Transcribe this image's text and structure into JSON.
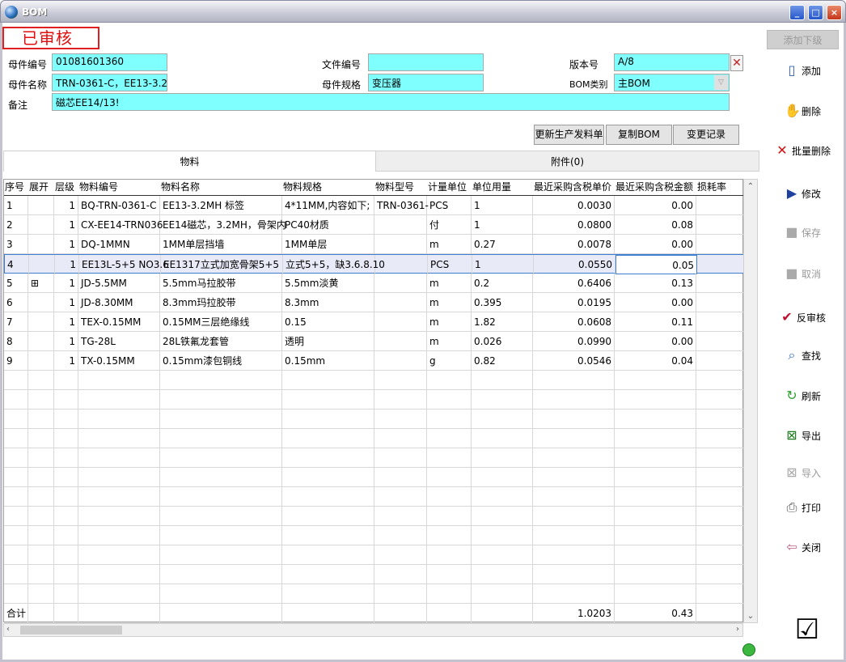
{
  "window": {
    "title": "BOM",
    "min": "_",
    "max": "□",
    "close": "×"
  },
  "status_label": "已审核",
  "form": {
    "parent_code": {
      "label": "母件编号",
      "value": "01081601360"
    },
    "parent_name": {
      "label": "母件名称",
      "value": "TRN-0361-C，EE13-3.2"
    },
    "remark": {
      "label": "备注",
      "value": "磁芯EE14/13!"
    },
    "file_no": {
      "label": "文件编号",
      "value": ""
    },
    "parent_spec": {
      "label": "母件规格",
      "value": "变压器"
    },
    "version": {
      "label": "版本号",
      "value": "A/8"
    },
    "bom_type": {
      "label": "BOM类别",
      "value": "主BOM"
    }
  },
  "actions": {
    "update": "更新生产发料单",
    "copy": "复制BOM",
    "history": "变更记录"
  },
  "tabs": [
    {
      "label": "物料",
      "active": true
    },
    {
      "label": "附件(0)",
      "active": false
    }
  ],
  "grid": {
    "columns": [
      "序号",
      "展开",
      "层级",
      "物料编号",
      "物料名称",
      "物料规格",
      "物料型号",
      "计量单位",
      "单位用量",
      "最近采购含税单价",
      "最近采购含税金额",
      "损耗率"
    ],
    "rows": [
      [
        "1",
        "",
        "1",
        "BQ-TRN-0361-C",
        "EE13-3.2MH 标签",
        "4*11MM,内容如下;",
        "TRN-0361-",
        "PCS",
        "1",
        "0.0030",
        "0.00",
        ""
      ],
      [
        "2",
        "",
        "1",
        "CX-EE14-TRN036",
        "EE14磁芯，3.2MH，骨架内",
        "PC40材质",
        "",
        "付",
        "1",
        "0.0800",
        "0.08",
        ""
      ],
      [
        "3",
        "",
        "1",
        "DQ-1MMN",
        "1MM单层挡墙",
        "1MM单层",
        "",
        "m",
        "0.27",
        "0.0078",
        "0.00",
        ""
      ],
      [
        "4",
        "",
        "1",
        "EE13L-5+5 NO3.6",
        "EE1317立式加宽骨架5+5",
        "立式5+5，缺3.6.8.10",
        "",
        "PCS",
        "1",
        "0.0550",
        "0.05",
        ""
      ],
      [
        "5",
        "⊞",
        "1",
        "JD-5.5MM",
        "5.5mm马拉胶带",
        "5.5mm淡黄",
        "",
        "m",
        "0.2",
        "0.6406",
        "0.13",
        ""
      ],
      [
        "6",
        "",
        "1",
        "JD-8.30MM",
        "8.3mm玛拉胶带",
        "8.3mm",
        "",
        "m",
        "0.395",
        "0.0195",
        "0.00",
        ""
      ],
      [
        "7",
        "",
        "1",
        "TEX-0.15MM",
        "0.15MM三层绝缘线",
        "0.15",
        "",
        "m",
        "1.82",
        "0.0608",
        "0.11",
        ""
      ],
      [
        "8",
        "",
        "1",
        "TG-28L",
        "28L铁氟龙套管",
        "透明",
        "",
        "m",
        "0.026",
        "0.0990",
        "0.00",
        ""
      ],
      [
        "9",
        "",
        "1",
        "TX-0.15MM",
        "0.15mm漆包铜线",
        "0.15mm",
        "",
        "g",
        "0.82",
        "0.0546",
        "0.04",
        ""
      ]
    ],
    "selected_row": 4,
    "total": {
      "label": "合计",
      "unit_price": "1.0203",
      "amount": "0.43"
    }
  },
  "sidebar": [
    {
      "label": "添加下级",
      "icon": "add-child",
      "enabled": false
    },
    {
      "label": "添加",
      "icon": "new-document-icon",
      "enabled": true
    },
    {
      "label": "删除",
      "icon": "delete-hand-icon",
      "enabled": true
    },
    {
      "label": "批量删除",
      "icon": "red-x-icon",
      "enabled": true
    },
    {
      "label": "修改",
      "icon": "edit-icon",
      "enabled": true
    },
    {
      "label": "保存",
      "icon": "save-icon",
      "enabled": false
    },
    {
      "label": "取消",
      "icon": "cancel-icon",
      "enabled": false
    },
    {
      "label": "反审核",
      "icon": "spellcheck-icon",
      "enabled": true
    },
    {
      "label": "查找",
      "icon": "search-icon",
      "enabled": true
    },
    {
      "label": "刷新",
      "icon": "refresh-icon",
      "enabled": true
    },
    {
      "label": "导出",
      "icon": "excel-export-icon",
      "enabled": true
    },
    {
      "label": "导入",
      "icon": "excel-import-icon",
      "enabled": false
    },
    {
      "label": "打印",
      "icon": "printer-icon",
      "enabled": true
    },
    {
      "label": "关闭",
      "icon": "exit-door-icon",
      "enabled": true
    }
  ],
  "colors": {
    "input_bg": "#80ffff",
    "status_red": "#e01010",
    "selection": "#3c7fd0"
  }
}
